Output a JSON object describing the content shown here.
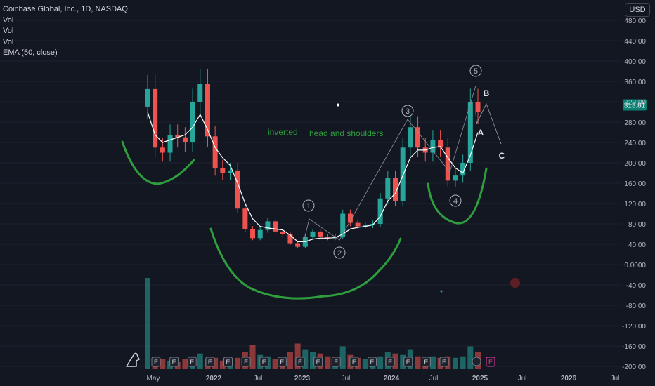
{
  "header": {
    "title": "Coinbase Global, Inc., 1D, NASDAQ",
    "indicators": [
      "Vol",
      "Vol",
      "Vol",
      "EMA (50, close)"
    ],
    "currency": "USD"
  },
  "colors": {
    "background": "#131722",
    "up": "#26a69a",
    "down": "#ef5350",
    "ema": "#ffffff",
    "annotation_green": "#2e9e3e",
    "price_badge": "#0b7f74",
    "price_line": "#26a69a"
  },
  "annotations": {
    "inverted": "inverted",
    "head_shoulders": "head and shoulders",
    "waves": [
      "1",
      "2",
      "3",
      "4",
      "5"
    ],
    "abc": [
      "A",
      "B",
      "C"
    ],
    "earnings_marker": "E"
  },
  "chart_data": {
    "type": "line",
    "title": "Coinbase Global, Inc., 1D, NASDAQ",
    "xlabel": "",
    "ylabel": "",
    "x_ticks": [
      "May",
      "2022",
      "Jul",
      "2023",
      "Jul",
      "2024",
      "Jul",
      "2025",
      "Jul",
      "2026",
      "Jul"
    ],
    "y_ticks": [
      "480.00",
      "440.00",
      "400.00",
      "360.00",
      "320.00",
      "280.00",
      "240.00",
      "200.00",
      "160.00",
      "120.00",
      "80.00",
      "40.00",
      "0.0000",
      "-40.00",
      "-80.00",
      "-120.00",
      "-160.00",
      "-200.00"
    ],
    "ylim": [
      -200,
      480
    ],
    "current_price": "313.81",
    "x": [
      "2021-04",
      "2021-05",
      "2021-06",
      "2021-07",
      "2021-08",
      "2021-09",
      "2021-10",
      "2021-11",
      "2021-12",
      "2022-01",
      "2022-02",
      "2022-03",
      "2022-04",
      "2022-05",
      "2022-06",
      "2022-07",
      "2022-08",
      "2022-09",
      "2022-10",
      "2022-11",
      "2022-12",
      "2023-01",
      "2023-02",
      "2023-03",
      "2023-04",
      "2023-05",
      "2023-06",
      "2023-07",
      "2023-08",
      "2023-09",
      "2023-10",
      "2023-11",
      "2023-12",
      "2024-01",
      "2024-02",
      "2024-03",
      "2024-04",
      "2024-05",
      "2024-06",
      "2024-07",
      "2024-08",
      "2024-09",
      "2024-10",
      "2024-11",
      "2024-12"
    ],
    "series": [
      {
        "name": "Coinbase Global, Inc.",
        "values": [
          345,
          230,
          220,
          255,
          250,
          240,
          320,
          355,
          252,
          190,
          180,
          185,
          110,
          70,
          52,
          68,
          85,
          65,
          60,
          42,
          35,
          55,
          65,
          55,
          52,
          55,
          100,
          82,
          75,
          78,
          80,
          130,
          170,
          125,
          230,
          270,
          230,
          220,
          245,
          230,
          165,
          175,
          200,
          320,
          300
        ]
      },
      {
        "name": "EMA (50, close)",
        "values": [
          300,
          255,
          240,
          245,
          250,
          255,
          270,
          295,
          265,
          230,
          210,
          195,
          160,
          120,
          90,
          75,
          72,
          70,
          68,
          58,
          45,
          45,
          50,
          52,
          52,
          53,
          60,
          70,
          73,
          75,
          78,
          95,
          125,
          140,
          175,
          210,
          225,
          225,
          230,
          232,
          210,
          190,
          180,
          215,
          260
        ]
      }
    ],
    "volume": [
      320,
      40,
      35,
      30,
      25,
      35,
      45,
      55,
      35,
      40,
      30,
      30,
      40,
      60,
      85,
      50,
      45,
      35,
      40,
      60,
      90,
      70,
      60,
      55,
      45,
      40,
      80,
      50,
      40,
      35,
      40,
      45,
      60,
      55,
      50,
      70,
      45,
      40,
      45,
      40,
      45,
      40,
      45,
      80,
      60
    ],
    "earnings_count": 17
  }
}
